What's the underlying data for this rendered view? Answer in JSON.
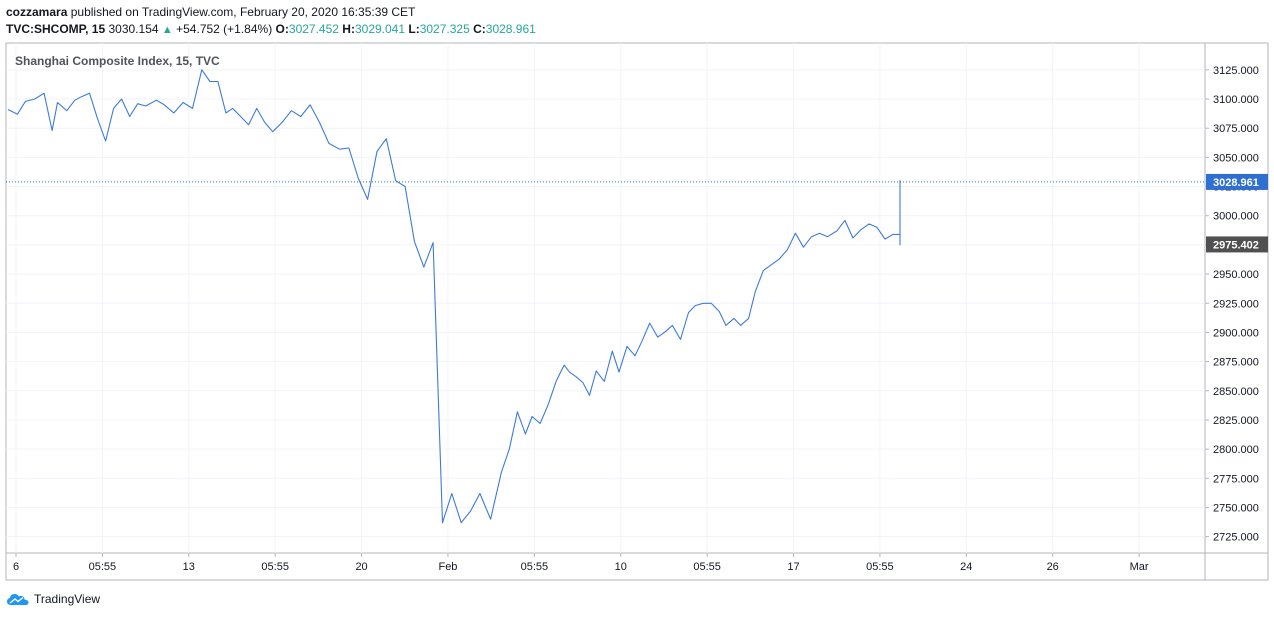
{
  "header": {
    "author": "cozzamara",
    "published_text": "published on TradingView.com, February 20, 2020 16:35:39 CET",
    "symbol": "TVC:SHCOMP, 15",
    "last": "3030.154",
    "change_arrow": "▲",
    "change": "+54.752 (+1.84%)",
    "o_label": "O:",
    "o": "3027.452",
    "h_label": "H:",
    "h": "3029.041",
    "l_label": "L:",
    "l": "3027.325",
    "c_label": "C:",
    "c": "3028.961"
  },
  "brand": {
    "name": "TradingView"
  },
  "colors": {
    "line": "#3d7bd9",
    "axis_label_current": "#2f6fd1",
    "axis_label_prev": "#505050",
    "change_up": "#26a69a"
  },
  "chart_data": {
    "type": "line",
    "title": "Shanghai Composite Index, 15, TVC",
    "ylim": [
      2711,
      3148
    ],
    "y_ticks": [
      "3125.000",
      "3100.000",
      "3075.000",
      "3050.000",
      "3025.000",
      "3000.000",
      "2975.000",
      "2950.000",
      "2925.000",
      "2900.000",
      "2875.000",
      "2850.000",
      "2825.000",
      "2800.000",
      "2775.000",
      "2750.000",
      "2725.000"
    ],
    "x_ticks": [
      "6",
      "05:55",
      "13",
      "05:55",
      "20",
      "Feb",
      "05:55",
      "10",
      "05:55",
      "17",
      "05:55",
      "24",
      "26",
      "Mar"
    ],
    "current_price_label": "3028.961",
    "previous_close_label": "2975.402",
    "x_positions_fraction": [
      0,
      0.007,
      0.013,
      0.02,
      0.027,
      0.033,
      0.037,
      0.044,
      0.05,
      0.055,
      0.061,
      0.067,
      0.073,
      0.079,
      0.085,
      0.091,
      0.097,
      0.103,
      0.111,
      0.117,
      0.124,
      0.131,
      0.138,
      0.145,
      0.151,
      0.157,
      0.163,
      0.168,
      0.174,
      0.18,
      0.186,
      0.192,
      0.198,
      0.205,
      0.212,
      0.219,
      0.226,
      0.233,
      0.24,
      0.248,
      0.255,
      0.262,
      0.269,
      0.276,
      0.283,
      0.29,
      0.297,
      0.304,
      0.311,
      0.318,
      0.325,
      0.332,
      0.339,
      0.346,
      0.353,
      0.361,
      0.369,
      0.375,
      0.381,
      0.387,
      0.392,
      0.398,
      0.404,
      0.41,
      0.416,
      0.42,
      0.425,
      0.43,
      0.435,
      0.44,
      0.446,
      0.452,
      0.457,
      0.463,
      0.469,
      0.474,
      0.48,
      0.486,
      0.491,
      0.497,
      0.503,
      0.509,
      0.514,
      0.52,
      0.526,
      0.532,
      0.537,
      0.543,
      0.548,
      0.554,
      0.559,
      0.565,
      0.571,
      0.577,
      0.583,
      0.589,
      0.595,
      0.601,
      0.607,
      0.613,
      0.62,
      0.626,
      0.632,
      0.638,
      0.644,
      0.65,
      0.656,
      0.662,
      0.668,
      0.674,
      0.68,
      0.686,
      0.692,
      0.698,
      0.704,
      0.71,
      0.716,
      0.722,
      0.728,
      0.734,
      0.74,
      0.746,
      0.752,
      0.758,
      0.764,
      0.77,
      0.776,
      0.782,
      0.788,
      0.794,
      0.8
    ],
    "values": [
      3091,
      3087,
      3098,
      3100,
      3105,
      3073,
      3097,
      3090,
      3099,
      3102,
      3105,
      3083,
      3064,
      3092,
      3100,
      3085,
      3096,
      3094,
      3099,
      3095,
      3088,
      3097,
      3092,
      3125,
      3115,
      3115,
      3088,
      3092,
      3085,
      3078,
      3092,
      3080,
      3072,
      3080,
      3090,
      3085,
      3095,
      3080,
      3062,
      3057,
      3058,
      3032,
      3014,
      3055,
      3066,
      3030,
      3025,
      2978,
      2956,
      2977,
      2737,
      2762,
      2737,
      2747,
      2762,
      2740,
      2780,
      2800,
      2832,
      2813,
      2828,
      2822,
      2838,
      2858,
      2872,
      2866,
      2862,
      2857,
      2846,
      2867,
      2858,
      2884,
      2866,
      2888,
      2880,
      2892,
      2908,
      2896,
      2900,
      2906,
      2894,
      2917,
      2923,
      2925,
      2925,
      2918,
      2906,
      2912,
      2906,
      2912,
      2935,
      2953,
      2958,
      2963,
      2971,
      2985,
      2973,
      2982,
      2985,
      2982,
      2987,
      2996,
      2981,
      2988,
      2993,
      2990,
      2980,
      2984,
      2984,
      2975,
      2978,
      2981,
      2994,
      3006,
      3029,
      3030,
      3029,
      3029,
      3029,
      3029,
      3029,
      3029,
      3029,
      3029,
      3029,
      3029,
      3029,
      3029,
      3029,
      3029,
      3029
    ]
  }
}
